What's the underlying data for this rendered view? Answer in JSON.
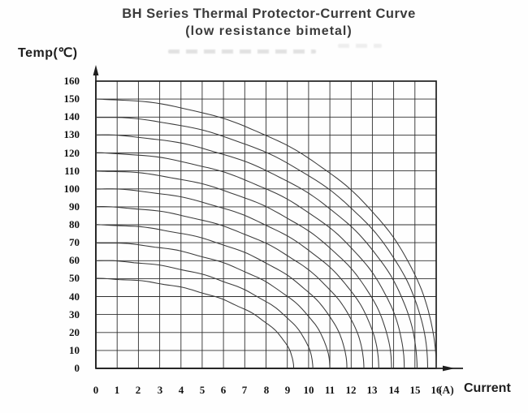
{
  "chart_data": {
    "type": "line",
    "title": "BH Series Thermal Protector-Current Curve",
    "subtitle": "(low resistance bimetal)",
    "ylabel": "Temp(℃)",
    "xlabel": "Current",
    "xunit": "(A)",
    "xlim": [
      0,
      16
    ],
    "ylim": [
      0,
      160
    ],
    "x_ticks": [
      0,
      1,
      2,
      3,
      4,
      5,
      6,
      7,
      8,
      9,
      10,
      11,
      12,
      13,
      14,
      15,
      16
    ],
    "y_ticks": [
      0,
      10,
      20,
      30,
      40,
      50,
      60,
      70,
      80,
      90,
      100,
      110,
      120,
      130,
      140,
      150,
      160
    ],
    "grid": true,
    "legend": "none",
    "curve_model": "each curve is a quarter-ellipse arc from (0 A, temp_C) on the temperature axis down to (trip_current_A, 0) on the current axis",
    "series": [
      {
        "name": "150℃ curve",
        "temp_C": 150,
        "trip_current_A": 16.0
      },
      {
        "name": "140℃ curve",
        "temp_C": 140,
        "trip_current_A": 15.6
      },
      {
        "name": "130℃ curve",
        "temp_C": 130,
        "trip_current_A": 15.1
      },
      {
        "name": "120℃ curve",
        "temp_C": 120,
        "trip_current_A": 14.5
      },
      {
        "name": "110℃ curve",
        "temp_C": 110,
        "trip_current_A": 13.9
      },
      {
        "name": "100℃ curve",
        "temp_C": 100,
        "trip_current_A": 13.3
      },
      {
        "name": "90℃ curve",
        "temp_C": 90,
        "trip_current_A": 12.6
      },
      {
        "name": "80℃ curve",
        "temp_C": 80,
        "trip_current_A": 11.8
      },
      {
        "name": "70℃ curve",
        "temp_C": 70,
        "trip_current_A": 11.0
      },
      {
        "name": "60℃ curve",
        "temp_C": 60,
        "trip_current_A": 10.2
      },
      {
        "name": "50℃ curve",
        "temp_C": 50,
        "trip_current_A": 9.3
      }
    ],
    "axis_color": "#1e1e1e",
    "grid_color": "#2e2e2e",
    "curve_color": "#3a3a3a"
  }
}
